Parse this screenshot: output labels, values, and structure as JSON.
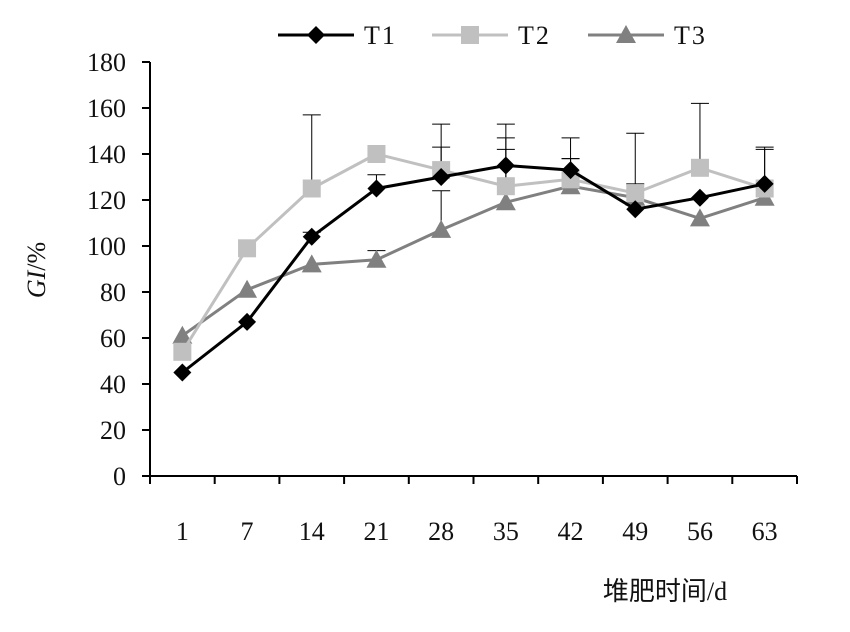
{
  "chart_data": {
    "type": "line",
    "title": "",
    "xlabel": "堆肥时间/d",
    "ylabel": "GI/%",
    "ylabel_parts": {
      "italic": "GI",
      "plain": "/%"
    },
    "categories": [
      "1",
      "7",
      "14",
      "21",
      "28",
      "35",
      "42",
      "49",
      "56",
      "63"
    ],
    "ylim": [
      0,
      180
    ],
    "yticks": [
      0,
      20,
      40,
      60,
      80,
      100,
      120,
      140,
      160,
      180
    ],
    "grid": false,
    "legend": "top",
    "series": [
      {
        "name": "T1",
        "color": "#000000",
        "marker": "diamond",
        "values": [
          45,
          67,
          104,
          125,
          130,
          135,
          133,
          116,
          121,
          127
        ],
        "error": [
          0,
          0,
          2,
          6,
          13,
          12,
          5,
          0,
          0,
          16
        ]
      },
      {
        "name": "T2",
        "color": "#c0c0c0",
        "marker": "square",
        "values": [
          54,
          99,
          125,
          140,
          133,
          126,
          129,
          123,
          134,
          125
        ],
        "error": [
          0,
          0,
          32,
          0,
          20,
          27,
          18,
          26,
          28,
          17
        ]
      },
      {
        "name": "T3",
        "color": "#808080",
        "marker": "triangle",
        "values": [
          61,
          81,
          92,
          94,
          107,
          119,
          126,
          121,
          112,
          121
        ],
        "error": [
          0,
          0,
          0,
          4,
          17,
          23,
          12,
          6,
          0,
          0
        ]
      }
    ]
  }
}
